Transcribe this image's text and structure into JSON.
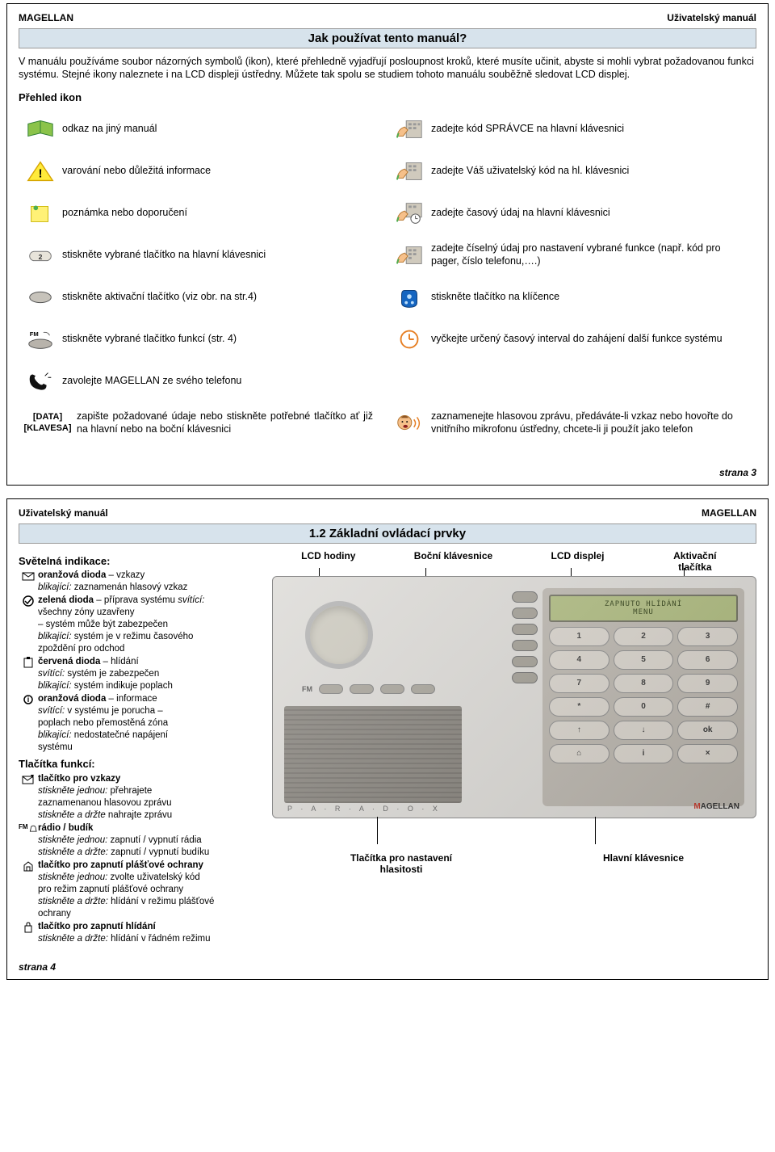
{
  "page1": {
    "hdr_left": "MAGELLAN",
    "hdr_right": "Uživatelský manuál",
    "section_title": "Jak používat tento manuál?",
    "intro": "V manuálu používáme soubor názorných symbolů (ikon), které přehledně vyjadřují posloupnost kroků, které musíte učinit, abyste si mohli vybrat požadovanou funkci systému. Stejné ikony naleznete i na LCD displeji ústředny. Můžete tak spolu se studiem tohoto manuálu souběžně sledovat LCD displej.",
    "overview_title": "Přehled ikon",
    "left": [
      {
        "text": "odkaz na jiný manuál"
      },
      {
        "text": "varování nebo důležitá informace"
      },
      {
        "text": "poznámka nebo doporučení"
      },
      {
        "text": "stiskněte vybrané tlačítko na hlavní klávesnici"
      },
      {
        "text": "stiskněte aktivační tlačítko (viz obr. na str.4)"
      },
      {
        "text": "stiskněte vybrané tlačítko funkcí (str. 4)"
      },
      {
        "text": "zavolejte MAGELLAN ze svého telefonu"
      }
    ],
    "right": [
      {
        "text": "zadejte kód SPRÁVCE na hlavní klávesnici"
      },
      {
        "text": "zadejte Váš uživatelský kód na hl. klávesnici"
      },
      {
        "text": "zadejte časový údaj na hlavní klávesnici"
      },
      {
        "text": "zadejte číselný údaj pro nastavení vybrané funkce (např. kód pro pager, číslo telefonu,….)"
      },
      {
        "text": "stiskněte tlačítko na klíčence"
      },
      {
        "text": "vyčkejte určený časový interval do zahájení další funkce systému"
      }
    ],
    "data_klav_1": "[DATA]",
    "data_klav_2": "[KLAVESA]",
    "bottom_left_text": "zapište požadované údaje nebo stiskněte potřebné tlačítko ať již na hlavní nebo na boční klávesnici",
    "bottom_right_text": "zaznamenejte hlasovou zprávu, předáváte-li vzkaz nebo hovořte do vnitřního mikrofonu ústředny, chcete-li ji použít jako telefon",
    "page_num": "strana 3"
  },
  "page2": {
    "hdr_left": "Uživatelský manuál",
    "hdr_right": "MAGELLAN",
    "section_title": "1.2 Základní ovládací prvky",
    "light_title": "Světelná indikace:",
    "lights": [
      {
        "bold": "oranžová dioda",
        "tail": " – vzkazy",
        "lines": [
          "<i>blikající:</i> zaznamenán hlasový vzkaz"
        ]
      },
      {
        "bold": "zelená dioda",
        "tail": " – příprava systému <i>svítící:</i>",
        "lines": [
          "všechny zóny uzavřeny",
          "– systém může být zabezpečen",
          "<i>blikající:</i> systém je v režimu časového",
          "zpoždění pro odchod"
        ]
      },
      {
        "bold": "červená dioda",
        "tail": " – hlídání",
        "lines": [
          "<i>svítící:</i> systém je zabezpečen",
          "<i>blikající:</i> systém indikuje poplach"
        ]
      },
      {
        "bold": "oranžová dioda",
        "tail": " – informace",
        "lines": [
          "<i>svítící:</i> v systému je porucha –",
          "poplach nebo přemostěná zóna",
          "<i>blikající:</i> nedostatečné napájení",
          "systému"
        ]
      }
    ],
    "func_title": "Tlačítka funkcí:",
    "funcs": [
      {
        "bold": "tlačítko pro vzkazy",
        "lines": [
          "<i>stiskněte jednou:</i> přehrajete",
          "zaznamenanou hlasovou zprávu",
          "<i>stiskněte a držte</i> nahrajte zprávu"
        ]
      },
      {
        "bold": "rádio / budík",
        "prefix": "FM ",
        "lines": [
          "<i>stiskněte jednou:</i> zapnutí / vypnutí rádia",
          "<i>stiskněte a držte:</i> zapnutí / vypnutí budíku"
        ]
      },
      {
        "bold": "tlačítko pro zapnutí plášťové ochrany",
        "lines": [
          "<i>stiskněte jednou:</i> zvolte uživatelský kód",
          " pro režim zapnutí plášťové ochrany",
          "<i>stiskněte a držte:</i> hlídání v režimu plášťové",
          "ochrany"
        ]
      },
      {
        "bold": "tlačítko pro zapnutí hlídání",
        "lines": [
          "<i>stiskněte a držte:</i> hlídání v řádném režimu"
        ]
      }
    ],
    "top_labels": {
      "a": "LCD hodiny",
      "b": "Boční klávesnice",
      "c": "LCD displej",
      "d": "Aktivační tlačítka"
    },
    "lcd_line1": "ZAPNUTO HLÍDÁNÍ",
    "lcd_line2": "MENU",
    "bottom_labels": {
      "a": "Tlačítka pro nastavení hlasitosti",
      "b": "Hlavní klávesnice"
    },
    "brand": "P · A · R · A · D · O · X",
    "logo_m": "M",
    "logo_rest": "AGELLAN",
    "nums": [
      "1",
      "2",
      "3",
      "4",
      "5",
      "6",
      "7",
      "8",
      "9",
      "*",
      "0",
      "#",
      "↑",
      "↓",
      "ok",
      "⌂",
      "i",
      "×"
    ],
    "page_num": "strana 4"
  }
}
